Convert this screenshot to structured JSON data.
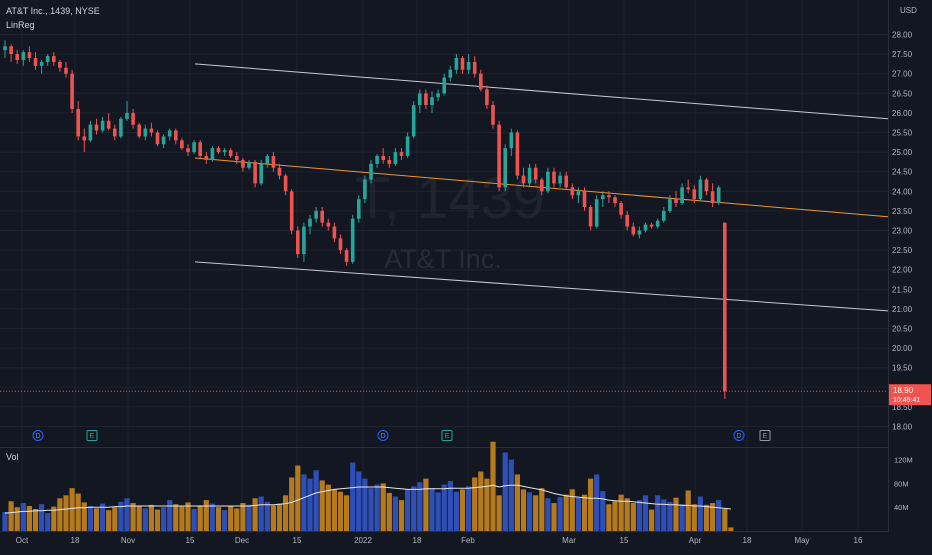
{
  "header": {
    "symbol_title": "AT&T Inc., 1439, NYSE",
    "indicator": "LinReg",
    "currency": "USD"
  },
  "watermark": {
    "ticker": "T, 1439",
    "name": "AT&T Inc."
  },
  "volume": {
    "label": "Vol"
  },
  "price_axis": {
    "ticks": [
      "28.00",
      "27.50",
      "27.00",
      "26.50",
      "26.00",
      "25.50",
      "25.00",
      "24.50",
      "24.00",
      "23.50",
      "23.00",
      "22.50",
      "22.00",
      "21.50",
      "21.00",
      "20.50",
      "20.00",
      "19.50",
      "19.00",
      "18.50",
      "18.00"
    ]
  },
  "current_price": {
    "price": "18.90",
    "countdown": "10:49:41",
    "color": "#f05350"
  },
  "volume_axis": {
    "ticks": [
      "120M",
      "80M",
      "40M"
    ]
  },
  "time_axis": {
    "labels": [
      "Oct",
      "18",
      "Nov",
      "15",
      "Dec",
      "15",
      "2022",
      "18",
      "Feb",
      "Mar",
      "15",
      "Apr",
      "18",
      "May",
      "16"
    ]
  },
  "events": [
    "D",
    "E",
    "D",
    "E",
    "D",
    "E"
  ],
  "colors": {
    "background": "#131722",
    "up": "#26a69a",
    "down": "#ef5350",
    "vol_blue": "#2f4fb8",
    "vol_orange": "#b57a1e",
    "regression": "#f0962a",
    "channel": "#c6c8cf",
    "axis_text": "#b2b5be"
  },
  "chart_data": {
    "type": "candlestick",
    "title": "AT&T Inc., 1439, NYSE",
    "ylim": [
      17.75,
      28.4
    ],
    "candles": [
      [
        27.6,
        27.85,
        27.4,
        27.7
      ],
      [
        27.7,
        27.75,
        27.3,
        27.5
      ],
      [
        27.5,
        27.6,
        27.25,
        27.35
      ],
      [
        27.35,
        27.6,
        27.2,
        27.55
      ],
      [
        27.55,
        27.7,
        27.3,
        27.4
      ],
      [
        27.4,
        27.55,
        27.1,
        27.2
      ],
      [
        27.2,
        27.35,
        27.0,
        27.3
      ],
      [
        27.3,
        27.5,
        27.2,
        27.45
      ],
      [
        27.45,
        27.55,
        27.2,
        27.3
      ],
      [
        27.3,
        27.35,
        27.05,
        27.15
      ],
      [
        27.15,
        27.3,
        26.9,
        27.0
      ],
      [
        27.0,
        27.1,
        26.0,
        26.1
      ],
      [
        26.1,
        26.3,
        25.3,
        25.4
      ],
      [
        25.4,
        25.6,
        25.0,
        25.3
      ],
      [
        25.3,
        25.8,
        25.25,
        25.7
      ],
      [
        25.7,
        25.85,
        25.45,
        25.55
      ],
      [
        25.55,
        25.9,
        25.5,
        25.8
      ],
      [
        25.8,
        26.0,
        25.55,
        25.6
      ],
      [
        25.6,
        25.7,
        25.3,
        25.4
      ],
      [
        25.4,
        25.9,
        25.35,
        25.85
      ],
      [
        25.85,
        26.3,
        25.8,
        26.0
      ],
      [
        26.0,
        26.1,
        25.6,
        25.7
      ],
      [
        25.7,
        25.75,
        25.35,
        25.4
      ],
      [
        25.4,
        25.7,
        25.3,
        25.6
      ],
      [
        25.6,
        25.75,
        25.4,
        25.5
      ],
      [
        25.5,
        25.55,
        25.15,
        25.2
      ],
      [
        25.2,
        25.45,
        25.1,
        25.4
      ],
      [
        25.4,
        25.6,
        25.3,
        25.55
      ],
      [
        25.55,
        25.6,
        25.2,
        25.3
      ],
      [
        25.3,
        25.35,
        25.05,
        25.1
      ],
      [
        25.1,
        25.2,
        24.9,
        25.0
      ],
      [
        25.0,
        25.3,
        24.95,
        25.25
      ],
      [
        25.25,
        25.3,
        24.85,
        24.9
      ],
      [
        24.9,
        25.0,
        24.7,
        24.8
      ],
      [
        24.8,
        25.15,
        24.75,
        25.1
      ],
      [
        25.1,
        25.15,
        24.95,
        25.0
      ],
      [
        25.0,
        25.1,
        24.9,
        25.05
      ],
      [
        25.05,
        25.1,
        24.85,
        24.9
      ],
      [
        24.9,
        25.0,
        24.7,
        24.8
      ],
      [
        24.8,
        24.85,
        24.5,
        24.6
      ],
      [
        24.6,
        24.8,
        24.55,
        24.75
      ],
      [
        24.75,
        24.8,
        24.1,
        24.2
      ],
      [
        24.2,
        24.8,
        24.15,
        24.7
      ],
      [
        24.7,
        24.95,
        24.6,
        24.9
      ],
      [
        24.9,
        25.0,
        24.5,
        24.6
      ],
      [
        24.6,
        24.7,
        24.3,
        24.4
      ],
      [
        24.4,
        24.45,
        23.9,
        24.0
      ],
      [
        24.0,
        24.05,
        22.9,
        23.0
      ],
      [
        23.0,
        23.1,
        22.3,
        22.4
      ],
      [
        22.4,
        23.2,
        22.2,
        23.1
      ],
      [
        23.1,
        23.4,
        22.9,
        23.3
      ],
      [
        23.3,
        23.6,
        23.2,
        23.5
      ],
      [
        23.5,
        23.6,
        23.1,
        23.2
      ],
      [
        23.2,
        23.3,
        23.0,
        23.1
      ],
      [
        23.1,
        23.2,
        22.7,
        22.8
      ],
      [
        22.8,
        22.9,
        22.4,
        22.5
      ],
      [
        22.5,
        22.55,
        22.1,
        22.2
      ],
      [
        22.2,
        23.4,
        22.15,
        23.3
      ],
      [
        23.3,
        23.9,
        23.2,
        23.8
      ],
      [
        23.8,
        24.4,
        23.7,
        24.3
      ],
      [
        24.3,
        24.8,
        24.2,
        24.7
      ],
      [
        24.7,
        24.95,
        24.6,
        24.9
      ],
      [
        24.9,
        25.1,
        24.7,
        24.8
      ],
      [
        24.8,
        24.9,
        24.6,
        24.7
      ],
      [
        24.7,
        25.1,
        24.65,
        25.0
      ],
      [
        25.0,
        25.1,
        24.8,
        24.9
      ],
      [
        24.9,
        25.5,
        24.85,
        25.4
      ],
      [
        25.4,
        26.3,
        25.35,
        26.2
      ],
      [
        26.2,
        26.6,
        26.0,
        26.5
      ],
      [
        26.5,
        26.6,
        26.1,
        26.2
      ],
      [
        26.2,
        26.55,
        26.0,
        26.4
      ],
      [
        26.4,
        26.6,
        26.3,
        26.5
      ],
      [
        26.5,
        27.0,
        26.45,
        26.9
      ],
      [
        26.9,
        27.2,
        26.8,
        27.1
      ],
      [
        27.1,
        27.5,
        27.0,
        27.4
      ],
      [
        27.4,
        27.45,
        27.0,
        27.1
      ],
      [
        27.1,
        27.5,
        27.0,
        27.3
      ],
      [
        27.3,
        27.45,
        26.9,
        27.0
      ],
      [
        27.0,
        27.1,
        26.55,
        26.6
      ],
      [
        26.6,
        26.7,
        26.1,
        26.2
      ],
      [
        26.2,
        26.3,
        25.6,
        25.7
      ],
      [
        25.7,
        25.8,
        24.0,
        24.1
      ],
      [
        24.1,
        25.2,
        24.0,
        25.1
      ],
      [
        25.1,
        25.6,
        24.9,
        25.5
      ],
      [
        25.5,
        25.55,
        24.3,
        24.4
      ],
      [
        24.4,
        24.6,
        24.1,
        24.2
      ],
      [
        24.2,
        24.7,
        24.1,
        24.6
      ],
      [
        24.6,
        24.7,
        24.2,
        24.3
      ],
      [
        24.3,
        24.35,
        23.9,
        24.0
      ],
      [
        24.0,
        24.6,
        23.95,
        24.5
      ],
      [
        24.5,
        24.6,
        24.1,
        24.2
      ],
      [
        24.2,
        24.5,
        24.1,
        24.4
      ],
      [
        24.4,
        24.5,
        24.05,
        24.1
      ],
      [
        24.1,
        24.2,
        23.8,
        23.9
      ],
      [
        23.9,
        24.1,
        23.7,
        24.0
      ],
      [
        24.0,
        24.1,
        23.5,
        23.6
      ],
      [
        23.6,
        23.65,
        23.0,
        23.1
      ],
      [
        23.1,
        23.9,
        23.05,
        23.8
      ],
      [
        23.8,
        24.0,
        23.6,
        23.9
      ],
      [
        23.9,
        24.0,
        23.7,
        23.85
      ],
      [
        23.85,
        23.9,
        23.6,
        23.7
      ],
      [
        23.7,
        23.75,
        23.3,
        23.4
      ],
      [
        23.4,
        23.5,
        23.0,
        23.1
      ],
      [
        23.1,
        23.2,
        22.85,
        22.9
      ],
      [
        22.9,
        23.1,
        22.8,
        23.0
      ],
      [
        23.0,
        23.2,
        22.95,
        23.15
      ],
      [
        23.15,
        23.2,
        23.05,
        23.1
      ],
      [
        23.1,
        23.3,
        23.05,
        23.25
      ],
      [
        23.25,
        23.6,
        23.2,
        23.5
      ],
      [
        23.5,
        23.9,
        23.45,
        23.8
      ],
      [
        23.8,
        24.0,
        23.6,
        23.7
      ],
      [
        23.7,
        24.2,
        23.65,
        24.1
      ],
      [
        24.1,
        24.3,
        23.95,
        24.05
      ],
      [
        24.05,
        24.15,
        23.7,
        23.8
      ],
      [
        23.8,
        24.4,
        23.75,
        24.3
      ],
      [
        24.3,
        24.35,
        23.9,
        24.0
      ],
      [
        24.0,
        24.2,
        23.6,
        23.7
      ],
      [
        23.7,
        24.15,
        23.65,
        24.1
      ],
      [
        23.2,
        23.2,
        18.7,
        18.9
      ]
    ],
    "volume_millions": [
      32,
      50,
      40,
      47,
      42,
      37,
      45,
      30,
      41,
      55,
      60,
      72,
      63,
      48,
      42,
      38,
      46,
      35,
      40,
      49,
      55,
      47,
      42,
      38,
      44,
      36,
      40,
      52,
      45,
      41,
      48,
      37,
      43,
      52,
      46,
      40,
      35,
      42,
      38,
      47,
      44,
      55,
      58,
      49,
      43,
      46,
      60,
      90,
      110,
      95,
      88,
      102,
      85,
      78,
      70,
      66,
      60,
      115,
      100,
      88,
      72,
      78,
      80,
      64,
      58,
      52,
      70,
      75,
      82,
      88,
      72,
      65,
      78,
      84,
      66,
      70,
      75,
      90,
      100,
      88,
      150,
      60,
      132,
      120,
      95,
      70,
      65,
      60,
      72,
      55,
      47,
      57,
      61,
      70,
      56,
      61,
      88,
      95,
      67,
      45,
      50,
      61,
      55,
      47,
      52,
      60,
      36,
      60,
      53,
      49,
      56,
      45,
      68,
      45,
      58,
      44,
      47,
      52,
      37,
      6
    ],
    "volume_ma_millions": [
      30,
      31,
      32,
      33,
      33,
      34,
      34,
      35,
      35,
      36,
      37,
      38,
      39,
      39,
      40,
      40,
      40,
      40,
      41,
      41,
      42,
      42,
      42,
      42,
      42,
      42,
      42,
      42,
      42,
      42,
      42,
      42,
      42,
      42,
      42,
      42,
      42,
      42,
      42,
      42,
      42,
      43,
      44,
      44,
      44,
      45,
      46,
      48,
      52,
      56,
      60,
      64,
      66,
      68,
      70,
      71,
      72,
      73,
      74,
      74,
      74,
      74,
      74,
      73,
      72,
      71,
      70,
      70,
      70,
      71,
      71,
      71,
      71,
      72,
      72,
      72,
      72,
      73,
      74,
      75,
      77,
      74,
      76,
      77,
      77,
      75,
      73,
      71,
      69,
      66,
      63,
      61,
      59,
      58,
      57,
      56,
      55,
      55,
      54,
      52,
      51,
      50,
      50,
      49,
      48,
      47,
      46,
      45,
      45,
      44,
      44,
      43,
      43,
      42,
      42,
      41,
      40,
      39,
      38,
      37
    ],
    "linreg": {
      "center": {
        "start": 24.85,
        "end": 23.35
      },
      "upper": {
        "start": 27.25,
        "end": 25.85
      },
      "lower": {
        "start": 22.2,
        "end": 20.95
      }
    }
  }
}
